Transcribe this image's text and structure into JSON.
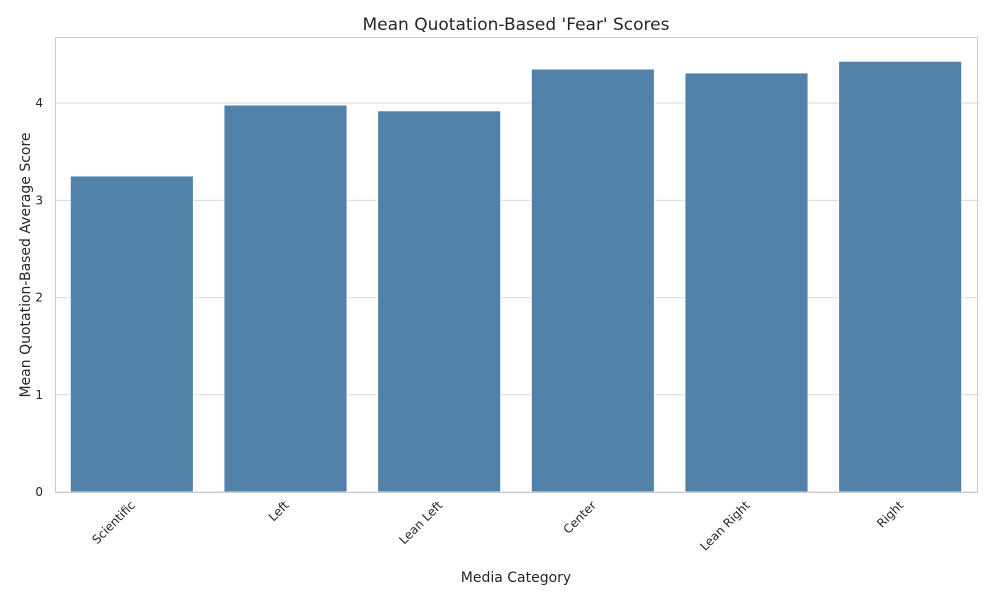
{
  "chart_data": {
    "type": "bar",
    "title": "Mean Quotation-Based 'Fear' Scores",
    "xlabel": "Media Category",
    "ylabel": "Mean Quotation-Based Average Score",
    "categories": [
      "Scientific",
      "Left",
      "Lean Left",
      "Center",
      "Lean Right",
      "Right"
    ],
    "values": [
      3.25,
      3.98,
      3.92,
      4.35,
      4.31,
      4.43
    ],
    "ylim": [
      0,
      4.67
    ],
    "yticks": [
      0,
      1,
      2,
      3,
      4
    ],
    "grid": true,
    "bar_color": "#5181a8"
  }
}
